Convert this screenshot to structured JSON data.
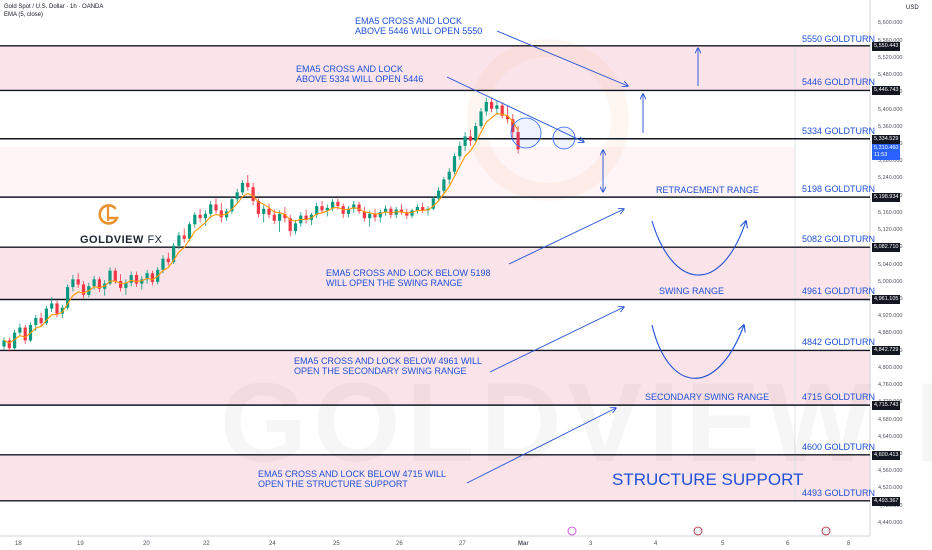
{
  "header": {
    "title": "Gold Spot / U.S. Dollar · 1h · OANDA",
    "indicator": "EMA (5, close)",
    "currency": "USD"
  },
  "logo": {
    "brand": "GOLDVIEW",
    "suffix": "FX",
    "watermark": "GOLDVIEW FX"
  },
  "colors": {
    "accent": "#1e4fd6",
    "zone_fill": "#fbe3ea",
    "up": "#089981",
    "down": "#f23645",
    "ema": "#ff9800"
  },
  "chart_data": {
    "type": "candlestick",
    "ylim": [
      4420,
      5590
    ],
    "price_ticks": [
      5600,
      5560,
      5520,
      5480,
      5440,
      5400,
      5360,
      5320,
      5280,
      5240,
      5200,
      5160,
      5120,
      5080,
      5040,
      5000,
      4960,
      4920,
      4880,
      4840,
      4800,
      4760,
      4720,
      4680,
      4640,
      4600,
      4560,
      4520,
      4480,
      4440
    ],
    "price_tick_labels": [
      "5,600.000",
      "5,560.000",
      "5,520.000",
      "5,480.000",
      "5,440.000",
      "5,400.000",
      "5,360.000",
      "5,320.000",
      "5,280.000",
      "5,240.000",
      "5,200.000",
      "5,160.000",
      "5,120.000",
      "5,080.000",
      "5,040.000",
      "5,000.000",
      "4,960.000",
      "4,920.000",
      "4,880.000",
      "4,840.000",
      "4,800.000",
      "4,760.000",
      "4,720.000",
      "4,680.000",
      "4,640.000",
      "4,600.000",
      "4,560.000",
      "4,520.000",
      "4,480.000",
      "4,440.000"
    ],
    "x_ticks": [
      "18",
      "19",
      "20",
      "22",
      "24",
      "25",
      "26",
      "27",
      "Mar",
      "3",
      "4",
      "5",
      "6",
      "8"
    ],
    "levels": [
      {
        "price": 5550.443,
        "label": "5,550.443",
        "name": "5550 GOLDTURN"
      },
      {
        "price": 5446.743,
        "label": "5,446.743",
        "name": "5446 GOLDTURN"
      },
      {
        "price": 5334.529,
        "label": "5,334.529",
        "name": "5334 GOLDTURN"
      },
      {
        "price": 5198.934,
        "label": "5,198.934",
        "name": "5198 GOLDTURN"
      },
      {
        "price": 5082.71,
        "label": "5,082.710",
        "name": "5082 GOLDTURN"
      },
      {
        "price": 4961.105,
        "label": "4,961.105",
        "name": "4961 GOLDTURN"
      },
      {
        "price": 4842.729,
        "label": "4,842.729",
        "name": "4842 GOLDTURN"
      },
      {
        "price": 4715.743,
        "label": "4,715.743",
        "name": "4715 GOLDTURN"
      },
      {
        "price": 4600.413,
        "label": "4,600.413",
        "name": "4600 GOLDTURN"
      },
      {
        "price": 4493.367,
        "label": "4,493.367",
        "name": "4493 GOLDTURN"
      }
    ],
    "zones": [
      {
        "from": 5446.743,
        "to": 5550.443
      },
      {
        "from": 5082.71,
        "to": 4961.105
      },
      {
        "from": 4842.729,
        "to": 4715.743
      },
      {
        "from": 4600.413,
        "to": 4493.367
      }
    ],
    "current_price": {
      "value": 5310.46,
      "label": "5,310.460",
      "countdown": "11:53"
    },
    "candles": [
      [
        4852,
        4873,
        4845,
        4866
      ],
      [
        4866,
        4872,
        4840,
        4848
      ],
      [
        4848,
        4890,
        4844,
        4884
      ],
      [
        4884,
        4905,
        4876,
        4896
      ],
      [
        4896,
        4902,
        4858,
        4866
      ],
      [
        4866,
        4908,
        4862,
        4902
      ],
      [
        4902,
        4925,
        4888,
        4918
      ],
      [
        4918,
        4930,
        4898,
        4906
      ],
      [
        4906,
        4946,
        4902,
        4940
      ],
      [
        4940,
        4966,
        4932,
        4952
      ],
      [
        4952,
        4958,
        4920,
        4928
      ],
      [
        4928,
        4948,
        4918,
        4942
      ],
      [
        4942,
        4996,
        4938,
        4990
      ],
      [
        4990,
        5018,
        4980,
        5008
      ],
      [
        5008,
        5022,
        4988,
        4996
      ],
      [
        4996,
        5004,
        4964,
        4972
      ],
      [
        4972,
        5000,
        4966,
        4992
      ],
      [
        4992,
        5016,
        4984,
        5008
      ],
      [
        5008,
        5014,
        4978,
        4986
      ],
      [
        4986,
        5006,
        4970,
        4998
      ],
      [
        4998,
        5036,
        4994,
        5028
      ],
      [
        5028,
        5034,
        4998,
        5004
      ],
      [
        5004,
        5020,
        4980,
        4988
      ],
      [
        4988,
        5008,
        4972,
        5000
      ],
      [
        5000,
        5026,
        4992,
        5018
      ],
      [
        5018,
        5026,
        4990,
        4998
      ],
      [
        4998,
        5016,
        4984,
        5008
      ],
      [
        5008,
        5030,
        4998,
        5022
      ],
      [
        5022,
        5028,
        4994,
        5002
      ],
      [
        5002,
        5036,
        4996,
        5030
      ],
      [
        5030,
        5064,
        5022,
        5056
      ],
      [
        5056,
        5070,
        5040,
        5048
      ],
      [
        5048,
        5092,
        5044,
        5086
      ],
      [
        5086,
        5118,
        5078,
        5110
      ],
      [
        5110,
        5126,
        5094,
        5102
      ],
      [
        5102,
        5142,
        5096,
        5136
      ],
      [
        5136,
        5164,
        5128,
        5158
      ],
      [
        5158,
        5172,
        5140,
        5150
      ],
      [
        5150,
        5168,
        5132,
        5160
      ],
      [
        5160,
        5190,
        5150,
        5182
      ],
      [
        5182,
        5196,
        5160,
        5168
      ],
      [
        5168,
        5186,
        5140,
        5152
      ],
      [
        5152,
        5172,
        5144,
        5166
      ],
      [
        5166,
        5200,
        5160,
        5194
      ],
      [
        5194,
        5218,
        5186,
        5210
      ],
      [
        5210,
        5238,
        5204,
        5232
      ],
      [
        5232,
        5250,
        5214,
        5222
      ],
      [
        5222,
        5232,
        5180,
        5190
      ],
      [
        5190,
        5196,
        5152,
        5160
      ],
      [
        5160,
        5180,
        5140,
        5172
      ],
      [
        5172,
        5184,
        5150,
        5158
      ],
      [
        5158,
        5170,
        5136,
        5144
      ],
      [
        5144,
        5168,
        5118,
        5160
      ],
      [
        5160,
        5176,
        5140,
        5150
      ],
      [
        5150,
        5158,
        5108,
        5120
      ],
      [
        5120,
        5146,
        5112,
        5138
      ],
      [
        5138,
        5164,
        5130,
        5156
      ],
      [
        5156,
        5170,
        5138,
        5146
      ],
      [
        5146,
        5162,
        5134,
        5158
      ],
      [
        5158,
        5186,
        5150,
        5178
      ],
      [
        5178,
        5190,
        5160,
        5168
      ],
      [
        5168,
        5182,
        5154,
        5174
      ],
      [
        5174,
        5194,
        5166,
        5188
      ],
      [
        5188,
        5196,
        5170,
        5178
      ],
      [
        5178,
        5184,
        5150,
        5160
      ],
      [
        5160,
        5178,
        5152,
        5172
      ],
      [
        5172,
        5190,
        5162,
        5182
      ],
      [
        5182,
        5188,
        5160,
        5166
      ],
      [
        5166,
        5176,
        5142,
        5150
      ],
      [
        5150,
        5168,
        5130,
        5160
      ],
      [
        5160,
        5172,
        5142,
        5152
      ],
      [
        5152,
        5170,
        5140,
        5164
      ],
      [
        5164,
        5180,
        5156,
        5172
      ],
      [
        5172,
        5178,
        5150,
        5158
      ],
      [
        5158,
        5176,
        5150,
        5170
      ],
      [
        5170,
        5182,
        5158,
        5164
      ],
      [
        5164,
        5172,
        5148,
        5156
      ],
      [
        5156,
        5172,
        5150,
        5168
      ],
      [
        5168,
        5182,
        5160,
        5176
      ],
      [
        5176,
        5186,
        5162,
        5168
      ],
      [
        5168,
        5178,
        5156,
        5172
      ],
      [
        5172,
        5200,
        5168,
        5196
      ],
      [
        5196,
        5222,
        5188,
        5214
      ],
      [
        5214,
        5246,
        5208,
        5240
      ],
      [
        5240,
        5266,
        5230,
        5258
      ],
      [
        5258,
        5300,
        5252,
        5294
      ],
      [
        5294,
        5328,
        5286,
        5318
      ],
      [
        5318,
        5350,
        5306,
        5340
      ],
      [
        5340,
        5356,
        5318,
        5330
      ],
      [
        5330,
        5372,
        5326,
        5364
      ],
      [
        5364,
        5406,
        5358,
        5398
      ],
      [
        5398,
        5430,
        5388,
        5420
      ],
      [
        5420,
        5428,
        5396,
        5404
      ],
      [
        5404,
        5422,
        5390,
        5412
      ],
      [
        5412,
        5418,
        5382,
        5388
      ],
      [
        5388,
        5412,
        5370,
        5380
      ],
      [
        5380,
        5392,
        5336,
        5350
      ],
      [
        5350,
        5364,
        5300,
        5310
      ]
    ],
    "annotations": [
      "EMA5 CROSS AND LOCK\nABOVE 5446 WILL OPEN 5550",
      "EMA5 CROSS AND LOCK\nABOVE 5334 WILL OPEN 5446",
      "EMA5 CROSS AND LOCK BELOW 5198\nWILL OPEN THE SWING RANGE",
      "EMA5 CROSS AND LOCK BELOW 4961 WILL\nOPEN THE SECONDARY SWING RANGE",
      "EMA5 CROSS AND LOCK BELOW 4715 WILL\nOPEN THE STRUCTURE SUPPORT"
    ],
    "zone_labels": [
      "RETRACEMENT RANGE",
      "SWING RANGE",
      "SECONDARY SWING RANGE",
      "STRUCTURE SUPPORT"
    ]
  }
}
